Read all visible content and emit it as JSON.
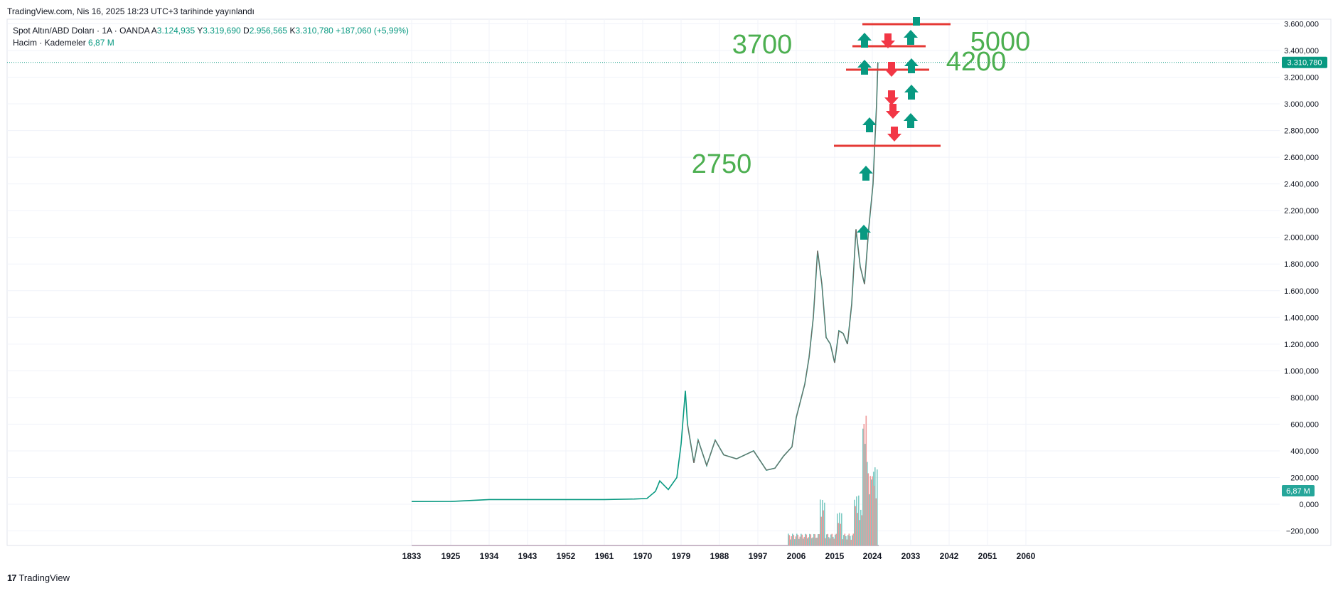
{
  "header": {
    "published": "TradingView.com, Nis 16, 2025 18:23 UTC+3 tarihinde yayınlandı"
  },
  "legend": {
    "symbol": "Spot Altın/ABD Doları · 1A · OANDA",
    "o_label": "A",
    "o_value": "3.124,935",
    "h_label": "Y",
    "h_value": "3.319,690",
    "l_label": "D",
    "l_value": "2.956,565",
    "c_label": "K",
    "c_value": "3.310,780",
    "change": "+187,060 (+5,99%)",
    "volume_label": "Hacim · Kademeler",
    "volume_value": "6,87 M"
  },
  "footer": {
    "brand": "TradingView"
  },
  "colors": {
    "up": "#089981",
    "down": "#f23645",
    "annotation_green": "#4caf50",
    "annotation_red": "#e53935",
    "grid": "#f0f3fa"
  },
  "chart_data": {
    "type": "line",
    "x_ticks": [
      "1833",
      "1925",
      "1934",
      "1943",
      "1952",
      "1961",
      "1970",
      "1979",
      "1988",
      "1997",
      "2006",
      "2015",
      "2024",
      "2033",
      "2042",
      "2051",
      "2060"
    ],
    "y_ticks": [
      "3.600,000",
      "3.400,000",
      "3.200,000",
      "3.000,000",
      "2.800,000",
      "2.600,000",
      "2.400,000",
      "2.200,000",
      "2.000,000",
      "1.800,000",
      "1.600,000",
      "1.400,000",
      "1.200,000",
      "1.000,000",
      "800,000",
      "600,000",
      "400,000",
      "200,000",
      "0,000",
      "−200,000"
    ],
    "ylim": [
      -200,
      3600
    ],
    "last_price_label": "3.310,780",
    "last_price": 3310.78,
    "volume_badge": "6,87 M",
    "series": [
      {
        "values": [
          {
            "x": 1833,
            "y": 20
          },
          {
            "x": 1925,
            "y": 21
          },
          {
            "x": 1934,
            "y": 35
          },
          {
            "x": 1943,
            "y": 35
          },
          {
            "x": 1952,
            "y": 35
          },
          {
            "x": 1961,
            "y": 35
          },
          {
            "x": 1968,
            "y": 39
          },
          {
            "x": 1971,
            "y": 43
          },
          {
            "x": 1973,
            "y": 97
          },
          {
            "x": 1974,
            "y": 175
          },
          {
            "x": 1976,
            "y": 110
          },
          {
            "x": 1978,
            "y": 200
          },
          {
            "x": 1979,
            "y": 450
          },
          {
            "x": 1980,
            "y": 850
          },
          {
            "x": 1980.5,
            "y": 600
          },
          {
            "x": 1982,
            "y": 310
          },
          {
            "x": 1983,
            "y": 480
          },
          {
            "x": 1985,
            "y": 290
          },
          {
            "x": 1987,
            "y": 480
          },
          {
            "x": 1989,
            "y": 370
          },
          {
            "x": 1992,
            "y": 340
          },
          {
            "x": 1996,
            "y": 400
          },
          {
            "x": 1999,
            "y": 255
          },
          {
            "x": 2001,
            "y": 270
          },
          {
            "x": 2003,
            "y": 360
          },
          {
            "x": 2005,
            "y": 430
          },
          {
            "x": 2006,
            "y": 650
          },
          {
            "x": 2008,
            "y": 900
          },
          {
            "x": 2009,
            "y": 1100
          },
          {
            "x": 2010,
            "y": 1400
          },
          {
            "x": 2011,
            "y": 1900
          },
          {
            "x": 2012,
            "y": 1650
          },
          {
            "x": 2013,
            "y": 1250
          },
          {
            "x": 2014,
            "y": 1200
          },
          {
            "x": 2015,
            "y": 1060
          },
          {
            "x": 2016,
            "y": 1300
          },
          {
            "x": 2017,
            "y": 1280
          },
          {
            "x": 2018,
            "y": 1200
          },
          {
            "x": 2019,
            "y": 1500
          },
          {
            "x": 2020,
            "y": 2060
          },
          {
            "x": 2021,
            "y": 1780
          },
          {
            "x": 2022,
            "y": 1650
          },
          {
            "x": 2023,
            "y": 2070
          },
          {
            "x": 2024,
            "y": 2400
          },
          {
            "x": 2024.5,
            "y": 2650
          },
          {
            "x": 2025,
            "y": 3000
          },
          {
            "x": 2025.3,
            "y": 3310.78
          }
        ]
      }
    ],
    "volume_spikes": [
      {
        "x": 2012,
        "v": 0.35
      },
      {
        "x": 2016,
        "v": 0.25
      },
      {
        "x": 2020,
        "v": 0.38
      },
      {
        "x": 2021,
        "v": 0.28
      },
      {
        "x": 2022,
        "v": 1.0
      },
      {
        "x": 2023,
        "v": 0.55
      },
      {
        "x": 2024,
        "v": 0.6
      },
      {
        "x": 2025,
        "v": 0.58
      }
    ],
    "annotations": {
      "labels": [
        {
          "text": "3700",
          "y": 3700
        },
        {
          "text": "5000",
          "y": 5000
        },
        {
          "text": "4200",
          "y": 4200
        },
        {
          "text": "2750",
          "y": 2750
        }
      ],
      "lines": [
        2750,
        3310,
        3510,
        3690
      ],
      "arrows_up": [
        {
          "x": 2021,
          "y": 2150
        },
        {
          "x": 2022,
          "y": 2580
        },
        {
          "x": 2023,
          "y": 2930
        },
        {
          "x": 2020,
          "y": 3570
        },
        {
          "x": 2020,
          "y": 3370
        },
        {
          "x": 2032,
          "y": 3580
        },
        {
          "x": 2032,
          "y": 3370
        },
        {
          "x": 2032,
          "y": 3160
        },
        {
          "x": 2032,
          "y": 2950
        }
      ],
      "arrows_down": [
        {
          "x": 2027,
          "y": 3580
        },
        {
          "x": 2028,
          "y": 3350
        },
        {
          "x": 2028,
          "y": 3130
        },
        {
          "x": 2029,
          "y": 3010
        },
        {
          "x": 2029,
          "y": 2850
        }
      ]
    }
  }
}
